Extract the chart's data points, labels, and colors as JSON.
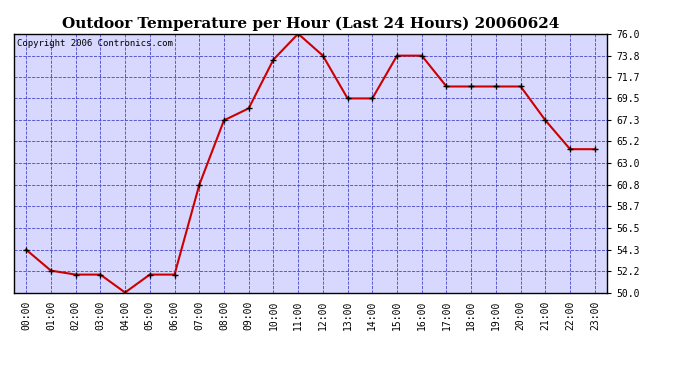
{
  "title": "Outdoor Temperature per Hour (Last 24 Hours) 20060624",
  "copyright": "Copyright 2006 Contronics.com",
  "hours": [
    "00:00",
    "01:00",
    "02:00",
    "03:00",
    "04:00",
    "05:00",
    "06:00",
    "07:00",
    "08:00",
    "09:00",
    "10:00",
    "11:00",
    "12:00",
    "13:00",
    "14:00",
    "15:00",
    "16:00",
    "17:00",
    "18:00",
    "19:00",
    "20:00",
    "21:00",
    "22:00",
    "23:00"
  ],
  "temps": [
    54.3,
    52.2,
    51.8,
    51.8,
    50.0,
    51.8,
    51.8,
    60.8,
    67.3,
    68.5,
    73.4,
    76.0,
    73.8,
    69.5,
    69.5,
    73.8,
    73.8,
    70.7,
    70.7,
    70.7,
    70.7,
    67.3,
    64.4,
    64.4
  ],
  "ylim": [
    50.0,
    76.0
  ],
  "yticks": [
    50.0,
    52.2,
    54.3,
    56.5,
    58.7,
    60.8,
    63.0,
    65.2,
    67.3,
    69.5,
    71.7,
    73.8,
    76.0
  ],
  "ytick_labels": [
    "50.0",
    "52.2",
    "54.3",
    "56.5",
    "58.7",
    "60.8",
    "63.0",
    "65.2",
    "67.3",
    "69.5",
    "71.7",
    "73.8",
    "76.0"
  ],
  "line_color": "#cc0000",
  "marker_color": "#000000",
  "fig_bg_color": "#ffffff",
  "plot_bg_color": "#d8d8ff",
  "grid_color": "#4444cc",
  "title_color": "#000000",
  "border_color": "#000000",
  "copyright_color": "#000000",
  "title_fontsize": 11,
  "tick_fontsize": 7,
  "copyright_fontsize": 6.5
}
